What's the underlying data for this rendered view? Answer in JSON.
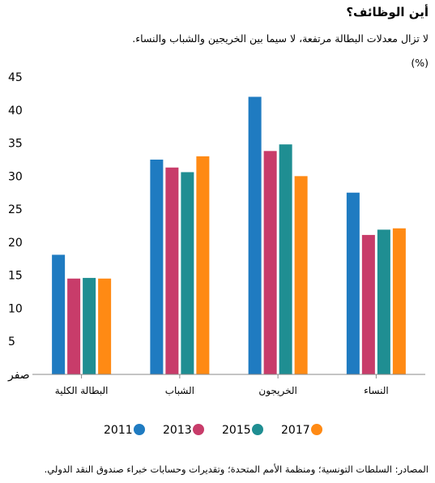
{
  "header": {
    "title": "أين الوظائف؟",
    "subtitle": "لا تزال معدلات البطالة مرتفعة، لا سيما بين الخريجين والشباب والنساء.",
    "unit": "(%)"
  },
  "footer": {
    "source": "المصادر: السلطات التونسية؛ ومنظمة الأمم المتحدة؛ وتقديرات وحسابات خبراء صندوق النقد الدولي."
  },
  "chart_data": {
    "type": "bar",
    "title": "أين الوظائف؟",
    "ylabel": "(%)",
    "ylim": [
      0,
      45
    ],
    "yticks": [
      0,
      5,
      10,
      15,
      20,
      25,
      30,
      35,
      40,
      45
    ],
    "ytick_labels": [
      "صفر",
      "5",
      "10",
      "15",
      "20",
      "25",
      "30",
      "35",
      "40",
      "45"
    ],
    "grid": false,
    "legend_position": "bottom",
    "categories": [
      "البطالة الكلية",
      "الشباب",
      "الخريجون",
      "النساء"
    ],
    "series": [
      {
        "name": "2011",
        "color": "#1f7bc1",
        "values": [
          18.1,
          32.5,
          42.0,
          27.5
        ]
      },
      {
        "name": "2013",
        "color": "#c83c6a",
        "values": [
          14.5,
          31.3,
          33.8,
          21.1
        ]
      },
      {
        "name": "2015",
        "color": "#1f8e92",
        "values": [
          14.6,
          30.6,
          34.8,
          21.9
        ]
      },
      {
        "name": "2017",
        "color": "#ff8a14",
        "values": [
          14.5,
          33.0,
          30.0,
          22.1
        ]
      }
    ]
  }
}
